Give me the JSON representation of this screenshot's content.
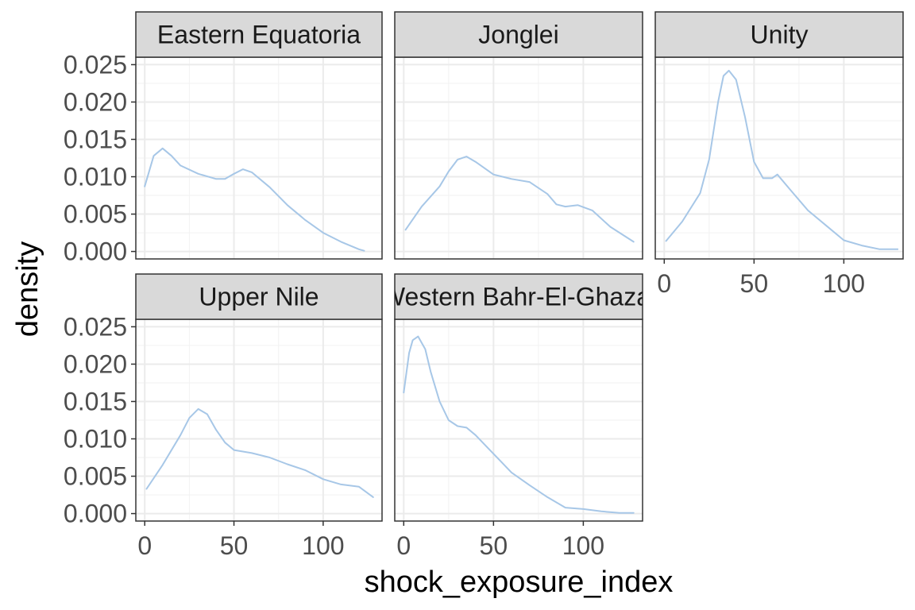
{
  "chart_data": {
    "type": "line",
    "facet_layout": "3 columns x 2 rows",
    "xlabel": "shock_exposure_index",
    "ylabel": "density",
    "xlim": [
      -5,
      133
    ],
    "ylim": [
      -0.001,
      0.026
    ],
    "x_ticks": [
      0,
      50,
      100
    ],
    "y_ticks": [
      0.0,
      0.005,
      0.01,
      0.015,
      0.02,
      0.025
    ],
    "x_tick_labels": [
      "0",
      "50",
      "100"
    ],
    "y_tick_labels": [
      "0.000",
      "0.005",
      "0.010",
      "0.015",
      "0.020",
      "0.025"
    ],
    "grid": true,
    "line_color": "#a7c7e7",
    "facets": [
      {
        "name": "Eastern Equatoria",
        "x": [
          0,
          5,
          10,
          15,
          20,
          30,
          40,
          45,
          50,
          55,
          60,
          70,
          80,
          90,
          100,
          110,
          120,
          123
        ],
        "y": [
          0.0087,
          0.0128,
          0.0138,
          0.0128,
          0.0115,
          0.0104,
          0.0097,
          0.0097,
          0.0104,
          0.011,
          0.0106,
          0.0086,
          0.0062,
          0.0042,
          0.0025,
          0.0013,
          0.0003,
          0.0001
        ]
      },
      {
        "name": "Jonglei",
        "x": [
          1,
          10,
          20,
          25,
          30,
          35,
          40,
          50,
          60,
          70,
          80,
          85,
          90,
          97,
          105,
          115,
          128
        ],
        "y": [
          0.0029,
          0.006,
          0.0087,
          0.0107,
          0.0123,
          0.0127,
          0.012,
          0.0103,
          0.0097,
          0.0093,
          0.0077,
          0.0063,
          0.006,
          0.0062,
          0.0055,
          0.0033,
          0.0013
        ]
      },
      {
        "name": "Unity",
        "x": [
          1,
          10,
          20,
          25,
          30,
          33,
          36,
          40,
          45,
          50,
          55,
          60,
          63,
          70,
          80,
          90,
          100,
          110,
          120,
          130
        ],
        "y": [
          0.0014,
          0.004,
          0.0078,
          0.0123,
          0.02,
          0.0235,
          0.0242,
          0.023,
          0.018,
          0.012,
          0.0098,
          0.0098,
          0.0103,
          0.0083,
          0.0055,
          0.0035,
          0.0015,
          0.0008,
          0.0003,
          0.0003
        ]
      },
      {
        "name": "Upper Nile",
        "x": [
          1,
          10,
          20,
          25,
          30,
          35,
          40,
          45,
          50,
          60,
          70,
          80,
          90,
          100,
          110,
          120,
          128
        ],
        "y": [
          0.0033,
          0.0065,
          0.0105,
          0.0128,
          0.014,
          0.0133,
          0.0112,
          0.0095,
          0.0085,
          0.0081,
          0.0075,
          0.0066,
          0.0058,
          0.0046,
          0.0039,
          0.0036,
          0.0022
        ]
      },
      {
        "name": "Western Bahr-El-Ghazal",
        "x": [
          0,
          3,
          5,
          8,
          12,
          15,
          20,
          25,
          30,
          35,
          40,
          50,
          60,
          70,
          80,
          90,
          100,
          110,
          120,
          128
        ],
        "y": [
          0.0162,
          0.0215,
          0.0232,
          0.0237,
          0.022,
          0.019,
          0.015,
          0.0125,
          0.0117,
          0.0115,
          0.0105,
          0.008,
          0.0055,
          0.0038,
          0.0022,
          0.0008,
          0.0006,
          0.0003,
          0.0001,
          0.0001
        ]
      }
    ]
  }
}
